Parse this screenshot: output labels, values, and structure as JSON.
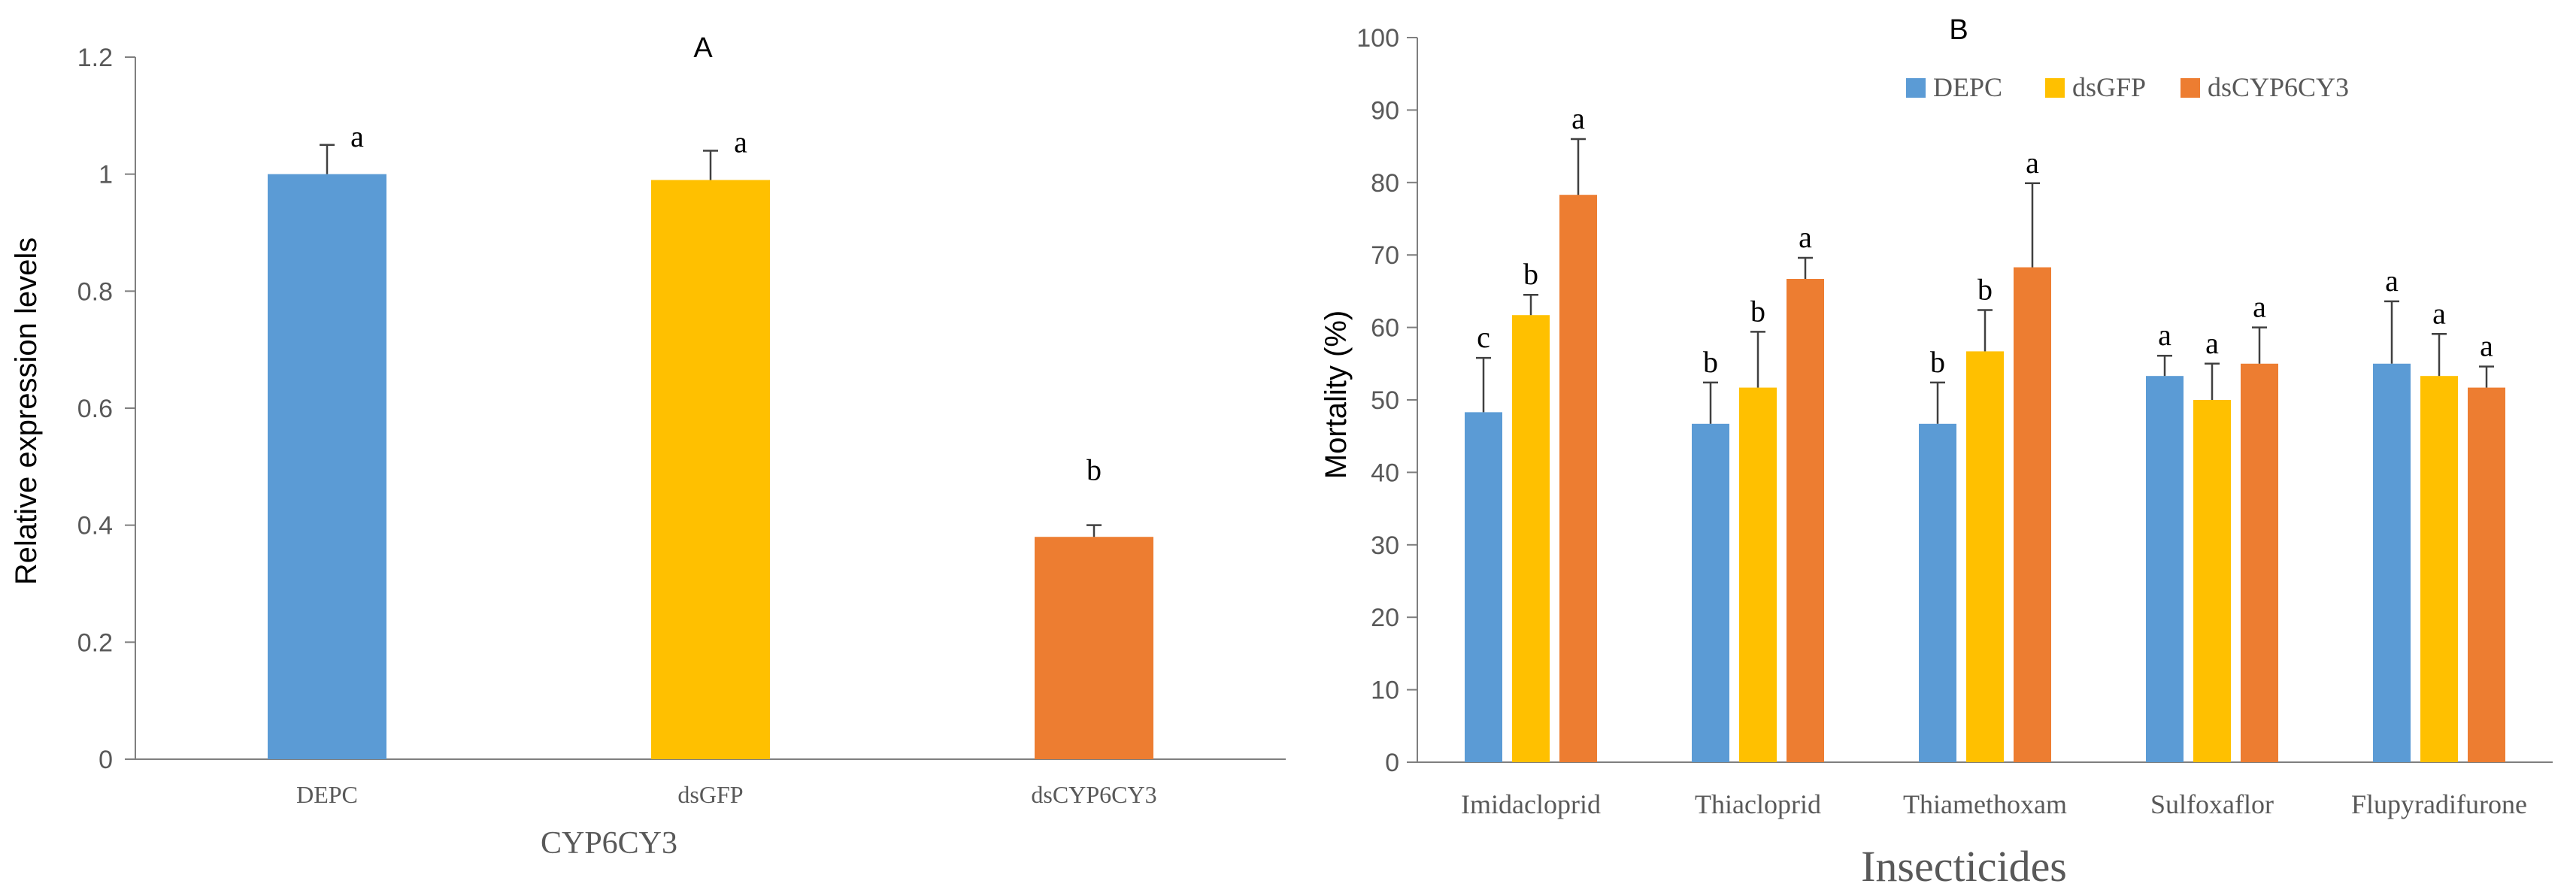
{
  "chart_data": [
    {
      "type": "bar",
      "panel_label": "A",
      "title": "",
      "xlabel": "CYP6CY3",
      "ylabel": "Relative expression levels",
      "ylim": [
        0,
        1.2
      ],
      "yticks": [
        "0",
        "0.2",
        "0.4",
        "0.6",
        "0.8",
        "1",
        "1.2"
      ],
      "categories": [
        "DEPC",
        "dsGFP",
        "dsCYP6CY3"
      ],
      "values": [
        1.0,
        0.99,
        0.38
      ],
      "errors": [
        0.05,
        0.05,
        0.02
      ],
      "letters": [
        "a",
        "a",
        "b"
      ],
      "colors": [
        "#5B9BD5",
        "#FFC000",
        "#ED7D31"
      ],
      "grid": false
    },
    {
      "type": "bar",
      "panel_label": "B",
      "title": "",
      "xlabel": "Insecticides",
      "ylabel": "Mortality (%)",
      "ylim": [
        0,
        100
      ],
      "yticks": [
        "0",
        "10",
        "20",
        "30",
        "40",
        "50",
        "60",
        "70",
        "80",
        "90",
        "100"
      ],
      "categories": [
        "Imidacloprid",
        "Thiacloprid",
        "Thiamethoxam",
        "Sulfoxaflor",
        "Flupyradifurone"
      ],
      "legend_position": "top",
      "series": [
        {
          "name": "DEPC",
          "color": "#5B9BD5",
          "values": [
            48.3,
            46.7,
            46.7,
            53.3,
            55.0
          ],
          "errors": [
            7.5,
            5.7,
            5.7,
            2.8,
            8.6
          ],
          "letters": [
            "c",
            "b",
            "b",
            "a",
            "a"
          ]
        },
        {
          "name": "dsGFP",
          "color": "#FFC000",
          "values": [
            61.7,
            51.7,
            56.7,
            50.0,
            53.3
          ],
          "errors": [
            2.8,
            7.7,
            5.7,
            5.0,
            5.8
          ],
          "letters": [
            "b",
            "b",
            "b",
            "a",
            "a"
          ]
        },
        {
          "name": "dsCYP6CY3",
          "color": "#ED7D31",
          "values": [
            78.3,
            66.7,
            68.3,
            55.0,
            51.7
          ],
          "errors": [
            7.7,
            2.9,
            11.6,
            5.0,
            2.9
          ],
          "letters": [
            "a",
            "a",
            "a",
            "a",
            "a"
          ]
        }
      ],
      "grid": false
    }
  ]
}
